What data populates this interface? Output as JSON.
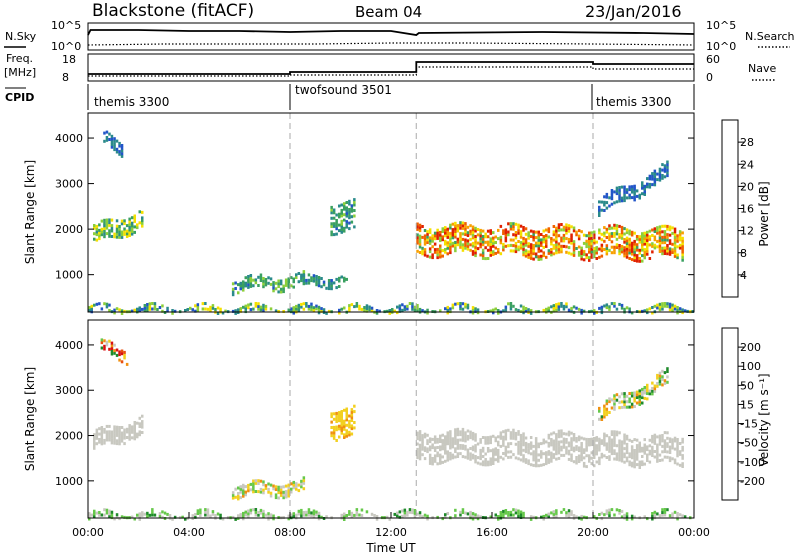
{
  "header": {
    "title": "Blackstone (fitACF)",
    "beam": "Beam 04",
    "date": "23/Jan/2016"
  },
  "summary": {
    "nsky_label": "N.Sky",
    "nsearch_label": "N.Search",
    "count_ticks": [
      "10^5",
      "10^0"
    ],
    "freq_label": "Freq.",
    "freq_unit": "[MHz]",
    "freq_ticks": [
      "18",
      "8"
    ],
    "nave_label": "Nave",
    "nave_ticks": [
      "60",
      "0"
    ],
    "cpid_label": "CPID",
    "modes": [
      {
        "name": "themis 3300",
        "start": 0
      },
      {
        "name": "twofsound 3501",
        "start": 8
      },
      {
        "name": "themis 3300",
        "start": 20
      }
    ]
  },
  "legends": {
    "power": {
      "label": "Power [dB]",
      "ticks": [
        "28",
        "24",
        "20",
        "16",
        "12",
        "8",
        "4"
      ]
    },
    "velocity": {
      "label": "Velocity [m s⁻¹]",
      "ticks": [
        "200",
        "100",
        "50",
        "15",
        "-15",
        "-50",
        "-100",
        "-200"
      ]
    }
  },
  "colors": {
    "power": [
      "#0a1bd6",
      "#2255c8",
      "#2a8a8a",
      "#3aa060",
      "#8ccf3a",
      "#f4e000",
      "#f8a000",
      "#f06000",
      "#e02000"
    ],
    "velocity": [
      "#1c3aa0",
      "#2b6ad8",
      "#1e8a2a",
      "#66c84a",
      "#c8c8c0",
      "#f2d020",
      "#f09010",
      "#e85010",
      "#d81010"
    ]
  },
  "chart_data": [
    {
      "type": "heatmap",
      "name": "Power",
      "xlabel": "Time UT",
      "ylabel": "Slant Range [km]",
      "x_ticks": [
        "00:00",
        "04:00",
        "08:00",
        "12:00",
        "16:00",
        "20:00",
        "00:00"
      ],
      "y_ticks": [
        "1000",
        "2000",
        "3000",
        "4000"
      ],
      "xlim_hours": [
        0,
        24
      ],
      "ylim_km": [
        180,
        4550
      ],
      "colorbar": {
        "label": "Power [dB]",
        "range": [
          0,
          30
        ]
      },
      "regions": [
        {
          "t": [
            0.2,
            2.2
          ],
          "r_center": [
            1900,
            2300
          ],
          "thick": 400,
          "vmin": 8,
          "vmax": 20
        },
        {
          "t": [
            0.6,
            1.4
          ],
          "r_center": [
            4000,
            3800
          ],
          "thick": 250,
          "vmin": 4,
          "vmax": 10
        },
        {
          "t": [
            5.7,
            8.5
          ],
          "r_center": [
            800,
            900
          ],
          "thick": 250,
          "vmin": 6,
          "vmax": 16
        },
        {
          "t": [
            8.5,
            10.2
          ],
          "r_center": [
            850,
            950
          ],
          "thick": 200,
          "vmin": 6,
          "vmax": 12
        },
        {
          "t": [
            9.6,
            10.5
          ],
          "r_center": [
            2300,
            2300
          ],
          "thick": 600,
          "vmin": 6,
          "vmax": 14
        },
        {
          "t": [
            13.0,
            23.6
          ],
          "r_center": [
            1800,
            1700
          ],
          "thick": 600,
          "vmin": 12,
          "vmax": 30
        },
        {
          "t": [
            20.2,
            23.0
          ],
          "r_center": [
            2500,
            3300
          ],
          "thick": 300,
          "vmin": 4,
          "vmax": 10
        },
        {
          "t": [
            0.0,
            24.0
          ],
          "r_center": [
            260,
            260
          ],
          "thick": 140,
          "vmin": 4,
          "vmax": 20
        }
      ]
    },
    {
      "type": "heatmap",
      "name": "Velocity",
      "xlabel": "Time UT",
      "ylabel": "Slant Range [km]",
      "x_ticks": [
        "00:00",
        "04:00",
        "08:00",
        "12:00",
        "16:00",
        "20:00",
        "00:00"
      ],
      "y_ticks": [
        "1000",
        "2000",
        "3000",
        "4000"
      ],
      "xlim_hours": [
        0,
        24
      ],
      "ylim_km": [
        180,
        4550
      ],
      "colorbar": {
        "label": "Velocity [m s⁻¹]",
        "range": [
          -200,
          200
        ]
      },
      "regions": [
        {
          "t": [
            0.2,
            2.2
          ],
          "r_center": [
            1900,
            2300
          ],
          "thick": 400,
          "vmin": -15,
          "vmax": 15
        },
        {
          "t": [
            0.5,
            1.6
          ],
          "r_center": [
            4000,
            3800
          ],
          "thick": 250,
          "vmin": -100,
          "vmax": 200
        },
        {
          "t": [
            5.7,
            8.5
          ],
          "r_center": [
            800,
            900
          ],
          "thick": 250,
          "vmin": -60,
          "vmax": 80
        },
        {
          "t": [
            9.6,
            10.5
          ],
          "r_center": [
            2300,
            2300
          ],
          "thick": 600,
          "vmin": 30,
          "vmax": 80
        },
        {
          "t": [
            13.0,
            23.6
          ],
          "r_center": [
            1800,
            1700
          ],
          "thick": 600,
          "vmin": -15,
          "vmax": 15
        },
        {
          "t": [
            20.2,
            23.0
          ],
          "r_center": [
            2500,
            3300
          ],
          "thick": 300,
          "vmin": -100,
          "vmax": 100
        },
        {
          "t": [
            0.0,
            24.0
          ],
          "r_center": [
            260,
            260
          ],
          "thick": 140,
          "vmin": -80,
          "vmax": 20
        }
      ]
    }
  ]
}
